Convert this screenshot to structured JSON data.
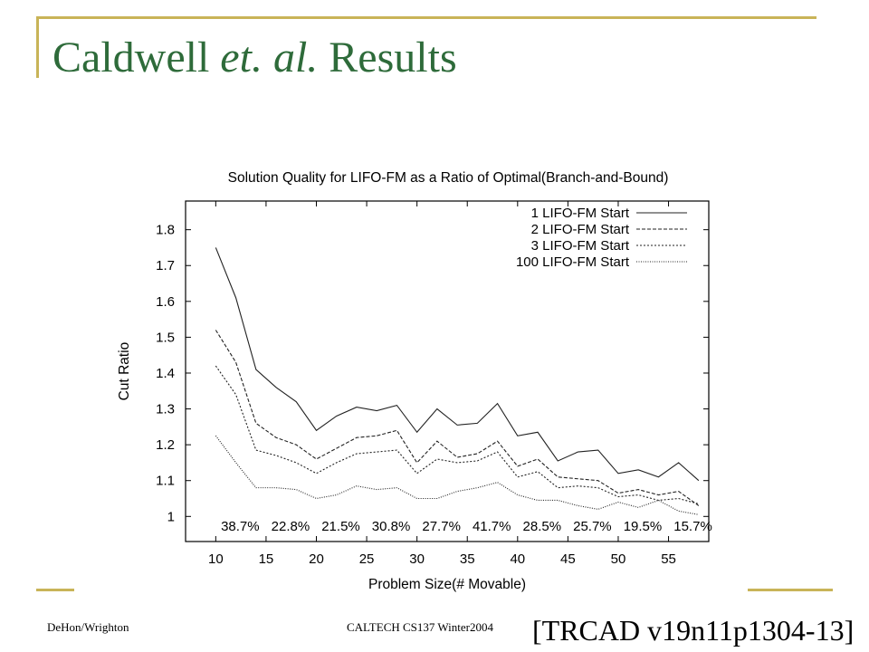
{
  "slide": {
    "title_prefix": "Caldwell ",
    "title_italic": "et. al.",
    "title_suffix": " Results",
    "footer_left": "DeHon/Wrighton",
    "footer_center": "CALTECH CS137 Winter2004",
    "citation": "[TRCAD v19n11p1304-13]"
  },
  "colors": {
    "accent": "#c9b458",
    "title": "#2e6b3a"
  },
  "chart_data": {
    "type": "line",
    "title": "Solution Quality for LIFO-FM as a Ratio of Optimal(Branch-and-Bound)",
    "xlabel": "Problem Size(# Movable)",
    "ylabel": "Cut Ratio",
    "xlim": [
      7,
      59
    ],
    "ylim": [
      0.93,
      1.88
    ],
    "xticks": [
      10,
      15,
      20,
      25,
      30,
      35,
      40,
      45,
      50,
      55
    ],
    "yticks": [
      1,
      1.1,
      1.2,
      1.3,
      1.4,
      1.5,
      1.6,
      1.7,
      1.8
    ],
    "ytick_labels": [
      "1",
      "1.1",
      "1.2",
      "1.3",
      "1.4",
      "1.5",
      "1.6",
      "1.7",
      "1.8"
    ],
    "legend_position": "top-right",
    "grid": false,
    "x": [
      10,
      12,
      14,
      16,
      18,
      20,
      22,
      24,
      26,
      28,
      30,
      32,
      34,
      36,
      38,
      40,
      42,
      44,
      46,
      48,
      50,
      52,
      54,
      56,
      58
    ],
    "series": [
      {
        "name": "1 LIFO-FM Start",
        "dash": "solid",
        "values": [
          1.75,
          1.61,
          1.41,
          1.36,
          1.32,
          1.24,
          1.28,
          1.305,
          1.295,
          1.31,
          1.235,
          1.3,
          1.255,
          1.26,
          1.315,
          1.225,
          1.235,
          1.155,
          1.18,
          1.185,
          1.12,
          1.13,
          1.11,
          1.15,
          1.1
        ]
      },
      {
        "name": "2 LIFO-FM Start",
        "dash": "dashed",
        "values": [
          1.52,
          1.43,
          1.26,
          1.22,
          1.2,
          1.16,
          1.19,
          1.22,
          1.225,
          1.24,
          1.15,
          1.21,
          1.165,
          1.175,
          1.21,
          1.14,
          1.16,
          1.11,
          1.105,
          1.1,
          1.065,
          1.075,
          1.06,
          1.07,
          1.03
        ]
      },
      {
        "name": "3 LIFO-FM Start",
        "dash": "fine-dashed",
        "values": [
          1.42,
          1.34,
          1.185,
          1.17,
          1.15,
          1.12,
          1.15,
          1.175,
          1.18,
          1.185,
          1.12,
          1.16,
          1.15,
          1.155,
          1.18,
          1.11,
          1.125,
          1.08,
          1.085,
          1.08,
          1.055,
          1.06,
          1.045,
          1.05,
          1.035
        ]
      },
      {
        "name": "100 LIFO-FM Start",
        "dash": "dotted",
        "values": [
          1.225,
          1.15,
          1.08,
          1.08,
          1.075,
          1.05,
          1.06,
          1.085,
          1.075,
          1.08,
          1.05,
          1.05,
          1.07,
          1.08,
          1.095,
          1.06,
          1.045,
          1.045,
          1.03,
          1.02,
          1.04,
          1.025,
          1.045,
          1.015,
          1.005
        ]
      }
    ],
    "annotations": [
      "38.7%",
      "22.8%",
      "21.5%",
      "30.8%",
      "27.7%",
      "41.7%",
      "28.5%",
      "25.7%",
      "19.5%",
      "15.7%"
    ],
    "annotation_x": [
      10,
      15,
      20,
      25,
      30,
      35,
      40,
      45,
      50,
      55
    ]
  }
}
